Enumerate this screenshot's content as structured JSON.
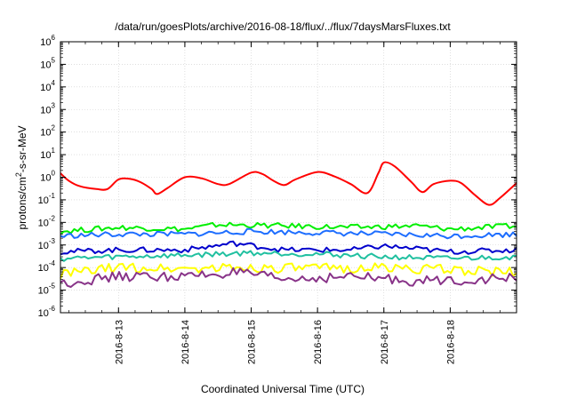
{
  "chart_data": {
    "type": "line",
    "title": "/data/run/goesPlots/archive/2016-08-18/flux/../flux/7daysMarsFluxes.txt",
    "xlabel": "Coordinated Universal Time (UTC)",
    "ylabel_parts": {
      "main": "protons/cm",
      "sup": "2",
      "rest": "-s-sr-MeV"
    },
    "ylabel": "protons/cm2-s-sr-MeV",
    "y_scale": "log",
    "ylim_exponent": [
      -6,
      6
    ],
    "y_ticks": [
      {
        "exp": "-6"
      },
      {
        "exp": "-5"
      },
      {
        "exp": "-4"
      },
      {
        "exp": "-3"
      },
      {
        "exp": "-2"
      },
      {
        "exp": "-1"
      },
      {
        "exp": "0"
      },
      {
        "exp": "1"
      },
      {
        "exp": "2"
      },
      {
        "exp": "3"
      },
      {
        "exp": "4"
      },
      {
        "exp": "5"
      },
      {
        "exp": "6"
      }
    ],
    "y_tick_base": "10",
    "xlim": [
      "2016-08-12T03:00",
      "2016-08-19T00:00"
    ],
    "x_ticks": [
      {
        "date": "2016-08-13",
        "label": "2016-8-13"
      },
      {
        "date": "2016-08-14",
        "label": "2016-8-14"
      },
      {
        "date": "2016-08-15",
        "label": "2016-8-15"
      },
      {
        "date": "2016-08-16",
        "label": "2016-8-16"
      },
      {
        "date": "2016-08-17",
        "label": "2016-8-17"
      },
      {
        "date": "2016-08-18",
        "label": "2016-8-18"
      }
    ],
    "grid": true,
    "legend": "none",
    "series": [
      {
        "color": "#ff0000",
        "style": "smooth",
        "values": [
          [
            "2016-08-12T03:00",
            1.5
          ],
          [
            "2016-08-12T06:00",
            0.7
          ],
          [
            "2016-08-12T10:00",
            0.4
          ],
          [
            "2016-08-12T16:00",
            0.3
          ],
          [
            "2016-08-12T20:00",
            0.3
          ],
          [
            "2016-08-13T00:00",
            0.8
          ],
          [
            "2016-08-13T04:00",
            0.85
          ],
          [
            "2016-08-13T08:00",
            0.6
          ],
          [
            "2016-08-13T12:00",
            0.3
          ],
          [
            "2016-08-13T14:00",
            0.18
          ],
          [
            "2016-08-13T18:00",
            0.35
          ],
          [
            "2016-08-14T00:00",
            1.0
          ],
          [
            "2016-08-14T06:00",
            0.9
          ],
          [
            "2016-08-14T12:00",
            0.5
          ],
          [
            "2016-08-14T16:00",
            0.5
          ],
          [
            "2016-08-15T00:00",
            1.6
          ],
          [
            "2016-08-15T04:00",
            1.4
          ],
          [
            "2016-08-15T08:00",
            0.7
          ],
          [
            "2016-08-15T12:00",
            0.45
          ],
          [
            "2016-08-15T16:00",
            0.8
          ],
          [
            "2016-08-16T00:00",
            1.7
          ],
          [
            "2016-08-16T06:00",
            1.1
          ],
          [
            "2016-08-16T12:00",
            0.5
          ],
          [
            "2016-08-16T18:00",
            0.2
          ],
          [
            "2016-08-16T22:00",
            1.5
          ],
          [
            "2016-08-17T00:00",
            4.5
          ],
          [
            "2016-08-17T04:00",
            3.0
          ],
          [
            "2016-08-17T10:00",
            0.6
          ],
          [
            "2016-08-17T14:00",
            0.22
          ],
          [
            "2016-08-17T18:00",
            0.5
          ],
          [
            "2016-08-18T00:00",
            0.7
          ],
          [
            "2016-08-18T04:00",
            0.55
          ],
          [
            "2016-08-18T09:00",
            0.16
          ],
          [
            "2016-08-18T14:00",
            0.06
          ],
          [
            "2016-08-18T18:00",
            0.12
          ],
          [
            "2016-08-19T00:00",
            0.55
          ]
        ]
      },
      {
        "color": "#00ee00",
        "style": "noisy",
        "values": [
          [
            "2016-08-12T03:00",
            0.004
          ],
          [
            "2016-08-13T00:00",
            0.006
          ],
          [
            "2016-08-14T00:00",
            0.005
          ],
          [
            "2016-08-14T12:00",
            0.008
          ],
          [
            "2016-08-15T12:00",
            0.007
          ],
          [
            "2016-08-16T12:00",
            0.006
          ],
          [
            "2016-08-17T12:00",
            0.007
          ],
          [
            "2016-08-18T00:00",
            0.005
          ],
          [
            "2016-08-18T12:00",
            0.006
          ],
          [
            "2016-08-19T00:00",
            0.007
          ]
        ]
      },
      {
        "color": "#1e6eff",
        "style": "noisy",
        "values": [
          [
            "2016-08-12T03:00",
            0.0025
          ],
          [
            "2016-08-13T00:00",
            0.003
          ],
          [
            "2016-08-14T00:00",
            0.003
          ],
          [
            "2016-08-15T00:00",
            0.004
          ],
          [
            "2016-08-16T00:00",
            0.0035
          ],
          [
            "2016-08-17T00:00",
            0.003
          ],
          [
            "2016-08-18T00:00",
            0.0025
          ],
          [
            "2016-08-19T00:00",
            0.003
          ]
        ]
      },
      {
        "color": "#0000cc",
        "style": "noisy",
        "values": [
          [
            "2016-08-12T03:00",
            0.0005
          ],
          [
            "2016-08-13T00:00",
            0.0006
          ],
          [
            "2016-08-14T00:00",
            0.0006
          ],
          [
            "2016-08-14T18:00",
            0.0012
          ],
          [
            "2016-08-15T12:00",
            0.0006
          ],
          [
            "2016-08-16T12:00",
            0.0006
          ],
          [
            "2016-08-17T00:00",
            0.0009
          ],
          [
            "2016-08-18T00:00",
            0.0005
          ],
          [
            "2016-08-19T00:00",
            0.0006
          ]
        ]
      },
      {
        "color": "#20c0a0",
        "style": "noisy",
        "values": [
          [
            "2016-08-12T03:00",
            0.00025
          ],
          [
            "2016-08-13T00:00",
            0.0003
          ],
          [
            "2016-08-14T00:00",
            0.00035
          ],
          [
            "2016-08-15T00:00",
            0.00045
          ],
          [
            "2016-08-16T00:00",
            0.0004
          ],
          [
            "2016-08-17T00:00",
            0.0003
          ],
          [
            "2016-08-18T00:00",
            0.00025
          ],
          [
            "2016-08-19T00:00",
            0.0003
          ]
        ]
      },
      {
        "color": "#ffff00",
        "style": "noisy",
        "values": [
          [
            "2016-08-12T03:00",
            5e-05
          ],
          [
            "2016-08-13T00:00",
            0.0001
          ],
          [
            "2016-08-14T00:00",
            9e-05
          ],
          [
            "2016-08-15T00:00",
            0.0001
          ],
          [
            "2016-08-16T00:00",
            9e-05
          ],
          [
            "2016-08-17T00:00",
            0.0001
          ],
          [
            "2016-08-18T00:00",
            8e-05
          ],
          [
            "2016-08-19T00:00",
            6e-05
          ]
        ]
      },
      {
        "color": "#883388",
        "style": "noisy",
        "values": [
          [
            "2016-08-12T03:00",
            2e-05
          ],
          [
            "2016-08-13T00:00",
            4e-05
          ],
          [
            "2016-08-14T00:00",
            4e-05
          ],
          [
            "2016-08-14T18:00",
            6e-05
          ],
          [
            "2016-08-15T12:00",
            3e-05
          ],
          [
            "2016-08-16T12:00",
            4e-05
          ],
          [
            "2016-08-17T12:00",
            2.5e-05
          ],
          [
            "2016-08-18T12:00",
            3e-05
          ],
          [
            "2016-08-19T00:00",
            3.5e-05
          ]
        ]
      }
    ]
  }
}
